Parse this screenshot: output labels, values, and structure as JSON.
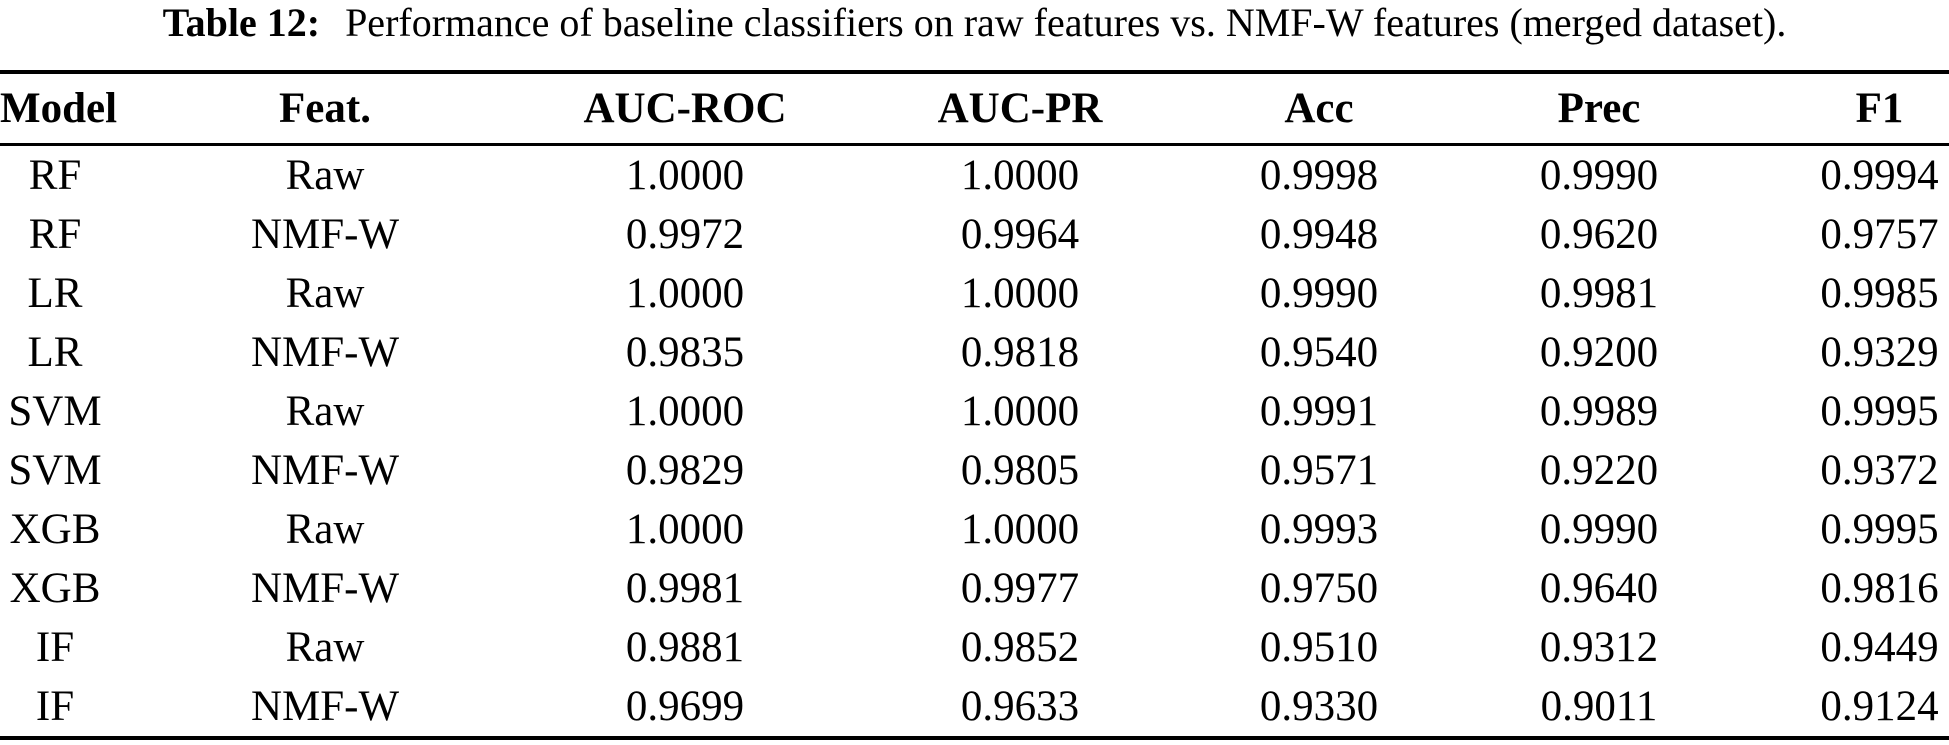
{
  "caption": {
    "label": "Table 12:",
    "text": "Performance of baseline classifiers on raw features vs. NMF-W features (merged dataset)."
  },
  "table": {
    "columns": [
      "Model",
      "Feat.",
      "AUC-ROC",
      "AUC-PR",
      "Acc",
      "Prec",
      "F1"
    ],
    "rows": [
      [
        "RF",
        "Raw",
        "1.0000",
        "1.0000",
        "0.9998",
        "0.9990",
        "0.9994"
      ],
      [
        "RF",
        "NMF-W",
        "0.9972",
        "0.9964",
        "0.9948",
        "0.9620",
        "0.9757"
      ],
      [
        "LR",
        "Raw",
        "1.0000",
        "1.0000",
        "0.9990",
        "0.9981",
        "0.9985"
      ],
      [
        "LR",
        "NMF-W",
        "0.9835",
        "0.9818",
        "0.9540",
        "0.9200",
        "0.9329"
      ],
      [
        "SVM",
        "Raw",
        "1.0000",
        "1.0000",
        "0.9991",
        "0.9989",
        "0.9995"
      ],
      [
        "SVM",
        "NMF-W",
        "0.9829",
        "0.9805",
        "0.9571",
        "0.9220",
        "0.9372"
      ],
      [
        "XGB",
        "Raw",
        "1.0000",
        "1.0000",
        "0.9993",
        "0.9990",
        "0.9995"
      ],
      [
        "XGB",
        "NMF-W",
        "0.9981",
        "0.9977",
        "0.9750",
        "0.9640",
        "0.9816"
      ],
      [
        "IF",
        "Raw",
        "0.9881",
        "0.9852",
        "0.9510",
        "0.9312",
        "0.9449"
      ],
      [
        "IF",
        "NMF-W",
        "0.9699",
        "0.9633",
        "0.9330",
        "0.9011",
        "0.9124"
      ]
    ]
  },
  "colors": {
    "background": "#ffffff",
    "text": "#000000",
    "rule": "#000000"
  }
}
